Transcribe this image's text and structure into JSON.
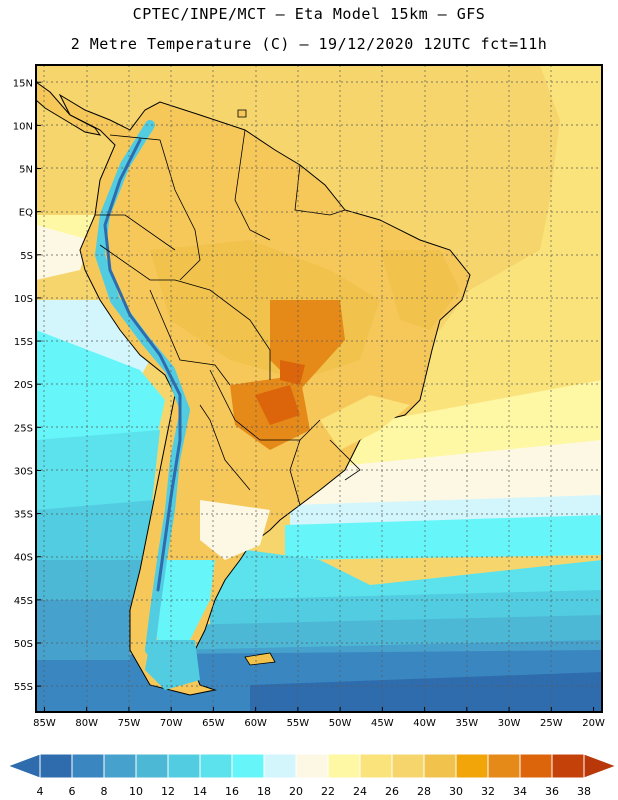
{
  "header": {
    "line1": "CPTEC/INPE/MCT –  Eta Model 15km – GFS",
    "line2": "2 Metre Temperature (C) – 19/12/2020 12UTC fct=11h"
  },
  "map": {
    "lon_range": [
      -86,
      -19
    ],
    "lat_range": [
      17,
      -58
    ],
    "lat_ticks": [
      {
        "v": 15,
        "label": "15N"
      },
      {
        "v": 10,
        "label": "10N"
      },
      {
        "v": 5,
        "label": "5N"
      },
      {
        "v": 0,
        "label": "EQ"
      },
      {
        "v": -5,
        "label": "5S"
      },
      {
        "v": -10,
        "label": "10S"
      },
      {
        "v": -15,
        "label": "15S"
      },
      {
        "v": -20,
        "label": "20S"
      },
      {
        "v": -25,
        "label": "25S"
      },
      {
        "v": -30,
        "label": "30S"
      },
      {
        "v": -35,
        "label": "35S"
      },
      {
        "v": -40,
        "label": "40S"
      },
      {
        "v": -45,
        "label": "45S"
      },
      {
        "v": -50,
        "label": "50S"
      },
      {
        "v": -55,
        "label": "55S"
      }
    ],
    "lon_ticks": [
      {
        "v": -85,
        "label": "85W"
      },
      {
        "v": -80,
        "label": "80W"
      },
      {
        "v": -75,
        "label": "75W"
      },
      {
        "v": -70,
        "label": "70W"
      },
      {
        "v": -65,
        "label": "65W"
      },
      {
        "v": -60,
        "label": "60W"
      },
      {
        "v": -55,
        "label": "55W"
      },
      {
        "v": -50,
        "label": "50W"
      },
      {
        "v": -45,
        "label": "45W"
      },
      {
        "v": -40,
        "label": "40W"
      },
      {
        "v": -35,
        "label": "35W"
      },
      {
        "v": -30,
        "label": "30W"
      },
      {
        "v": -25,
        "label": "25W"
      },
      {
        "v": -20,
        "label": "20W"
      }
    ]
  },
  "legend": {
    "labels": [
      "4",
      "6",
      "8",
      "10",
      "12",
      "14",
      "16",
      "18",
      "20",
      "22",
      "24",
      "26",
      "28",
      "30",
      "32",
      "34",
      "36",
      "38"
    ],
    "colors": [
      "#2e6cae",
      "#3a86c0",
      "#46a2cc",
      "#4cb8d6",
      "#52cce0",
      "#5ce2ec",
      "#66f6fa",
      "#d2f6fc",
      "#fdf8e4",
      "#fef7a4",
      "#fbe37c",
      "#f6d66c",
      "#f1c34c",
      "#f1a508",
      "#e58a18",
      "#dc640a",
      "#c4420a"
    ],
    "left_arrow_color": "#2e6cae",
    "right_arrow_color": "#b8380a"
  }
}
